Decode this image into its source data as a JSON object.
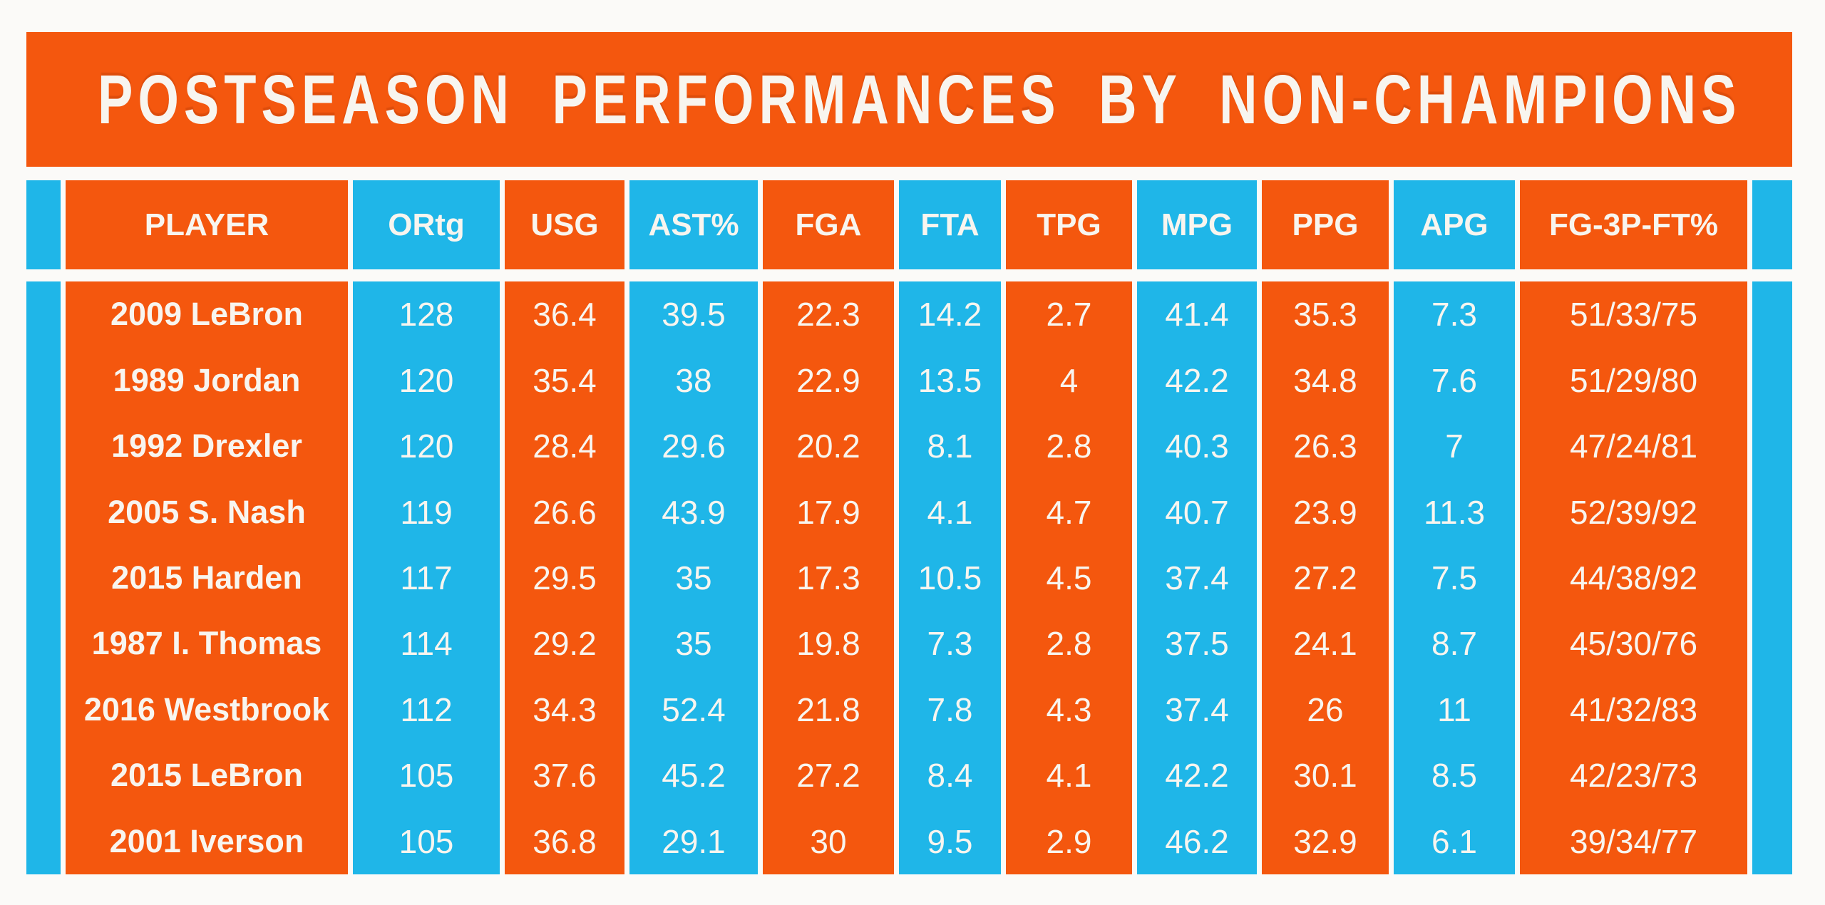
{
  "palette": {
    "orange": "#F4570E",
    "blue": "#1FB6E8",
    "cream": "#F8F5EF",
    "background": "#FBFAF8"
  },
  "chart_data": {
    "type": "table",
    "title": "POSTSEASON PERFORMANCES BY NON-CHAMPIONS",
    "columns": [
      {
        "key": "player",
        "label": "PLAYER",
        "color": "orange"
      },
      {
        "key": "ortg",
        "label": "ORtg",
        "color": "blue"
      },
      {
        "key": "usg",
        "label": "USG",
        "color": "orange"
      },
      {
        "key": "ast_pct",
        "label": "AST%",
        "color": "blue"
      },
      {
        "key": "fga",
        "label": "FGA",
        "color": "orange"
      },
      {
        "key": "fta",
        "label": "FTA",
        "color": "blue"
      },
      {
        "key": "tpg",
        "label": "TPG",
        "color": "orange"
      },
      {
        "key": "mpg",
        "label": "MPG",
        "color": "blue"
      },
      {
        "key": "ppg",
        "label": "PPG",
        "color": "orange"
      },
      {
        "key": "apg",
        "label": "APG",
        "color": "blue"
      },
      {
        "key": "fg_3p_ft",
        "label": "FG-3P-FT%",
        "color": "orange"
      }
    ],
    "rows": [
      [
        "2009 LeBron",
        "128",
        "36.4",
        "39.5",
        "22.3",
        "14.2",
        "2.7",
        "41.4",
        "35.3",
        "7.3",
        "51/33/75"
      ],
      [
        "1989 Jordan",
        "120",
        "35.4",
        "38",
        "22.9",
        "13.5",
        "4",
        "42.2",
        "34.8",
        "7.6",
        "51/29/80"
      ],
      [
        "1992 Drexler",
        "120",
        "28.4",
        "29.6",
        "20.2",
        "8.1",
        "2.8",
        "40.3",
        "26.3",
        "7",
        "47/24/81"
      ],
      [
        "2005 S. Nash",
        "119",
        "26.6",
        "43.9",
        "17.9",
        "4.1",
        "4.7",
        "40.7",
        "23.9",
        "11.3",
        "52/39/92"
      ],
      [
        "2015 Harden",
        "117",
        "29.5",
        "35",
        "17.3",
        "10.5",
        "4.5",
        "37.4",
        "27.2",
        "7.5",
        "44/38/92"
      ],
      [
        "1987 I. Thomas",
        "114",
        "29.2",
        "35",
        "19.8",
        "7.3",
        "2.8",
        "37.5",
        "24.1",
        "8.7",
        "45/30/76"
      ],
      [
        "2016 Westbrook",
        "112",
        "34.3",
        "52.4",
        "21.8",
        "7.8",
        "4.3",
        "37.4",
        "26",
        "11",
        "41/32/83"
      ],
      [
        "2015 LeBron",
        "105",
        "37.6",
        "45.2",
        "27.2",
        "8.4",
        "4.1",
        "42.2",
        "30.1",
        "8.5",
        "42/23/73"
      ],
      [
        "2001 Iverson",
        "105",
        "36.8",
        "29.1",
        "30",
        "9.5",
        "2.9",
        "46.2",
        "32.9",
        "6.1",
        "39/34/77"
      ]
    ]
  }
}
